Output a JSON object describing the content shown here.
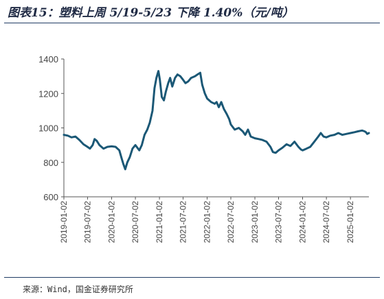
{
  "title": "图表15：塑料上周 5/19-5/23 下降 1.40%（元/吨）",
  "source": "来源：Wind，国金证券研究所",
  "colors": {
    "line": "#1b5876",
    "axis": "#555555",
    "text": "#444444",
    "title": "#1f2a44"
  },
  "chart_data": {
    "type": "line",
    "title": "",
    "xlabel": "",
    "ylabel": "",
    "ylim": [
      600,
      1400
    ],
    "yticks": [
      600,
      800,
      1000,
      1200,
      1400
    ],
    "xticks": [
      "2019-01-02",
      "2019-07-02",
      "2020-01-02",
      "2020-07-02",
      "2021-01-02",
      "2021-07-02",
      "2022-01-02",
      "2022-07-02",
      "2023-01-02",
      "2023-07-02",
      "2024-01-02",
      "2024-07-02",
      "2025-01-02"
    ],
    "xrange": [
      "2019-01-02",
      "2025-05-23"
    ],
    "grid": false,
    "legend": "none",
    "series": [
      {
        "points": [
          [
            "2019-01-02",
            960
          ],
          [
            "2019-02-01",
            955
          ],
          [
            "2019-03-01",
            945
          ],
          [
            "2019-04-01",
            950
          ],
          [
            "2019-05-01",
            930
          ],
          [
            "2019-06-01",
            905
          ],
          [
            "2019-07-01",
            890
          ],
          [
            "2019-07-20",
            880
          ],
          [
            "2019-08-10",
            900
          ],
          [
            "2019-08-25",
            935
          ],
          [
            "2019-09-10",
            925
          ],
          [
            "2019-10-01",
            900
          ],
          [
            "2019-11-01",
            880
          ],
          [
            "2019-12-01",
            890
          ],
          [
            "2020-01-02",
            893
          ],
          [
            "2020-02-01",
            890
          ],
          [
            "2020-03-01",
            870
          ],
          [
            "2020-03-20",
            820
          ],
          [
            "2020-04-01",
            790
          ],
          [
            "2020-04-15",
            760
          ],
          [
            "2020-05-01",
            800
          ],
          [
            "2020-05-20",
            830
          ],
          [
            "2020-06-10",
            880
          ],
          [
            "2020-07-02",
            900
          ],
          [
            "2020-08-01",
            870
          ],
          [
            "2020-08-20",
            900
          ],
          [
            "2020-09-10",
            960
          ],
          [
            "2020-10-01",
            990
          ],
          [
            "2020-10-20",
            1030
          ],
          [
            "2020-11-10",
            1100
          ],
          [
            "2020-11-25",
            1230
          ],
          [
            "2020-12-10",
            1290
          ],
          [
            "2020-12-25",
            1330
          ],
          [
            "2021-01-05",
            1280
          ],
          [
            "2021-01-20",
            1180
          ],
          [
            "2021-02-05",
            1160
          ],
          [
            "2021-02-20",
            1210
          ],
          [
            "2021-03-10",
            1260
          ],
          [
            "2021-03-25",
            1290
          ],
          [
            "2021-04-10",
            1240
          ],
          [
            "2021-05-01",
            1290
          ],
          [
            "2021-05-20",
            1310
          ],
          [
            "2021-06-10",
            1300
          ],
          [
            "2021-07-01",
            1280
          ],
          [
            "2021-07-20",
            1260
          ],
          [
            "2021-08-10",
            1270
          ],
          [
            "2021-09-01",
            1290
          ],
          [
            "2021-10-01",
            1300
          ],
          [
            "2021-10-20",
            1310
          ],
          [
            "2021-11-10",
            1320
          ],
          [
            "2021-11-25",
            1250
          ],
          [
            "2021-12-15",
            1200
          ],
          [
            "2022-01-02",
            1170
          ],
          [
            "2022-02-01",
            1150
          ],
          [
            "2022-03-01",
            1140
          ],
          [
            "2022-03-15",
            1150
          ],
          [
            "2022-04-01",
            1120
          ],
          [
            "2022-04-20",
            1150
          ],
          [
            "2022-05-10",
            1110
          ],
          [
            "2022-06-01",
            1080
          ],
          [
            "2022-06-20",
            1050
          ],
          [
            "2022-07-02",
            1020
          ],
          [
            "2022-08-01",
            990
          ],
          [
            "2022-09-01",
            1000
          ],
          [
            "2022-10-01",
            980
          ],
          [
            "2022-10-20",
            960
          ],
          [
            "2022-11-10",
            990
          ],
          [
            "2022-12-01",
            950
          ],
          [
            "2023-01-02",
            940
          ],
          [
            "2023-02-01",
            935
          ],
          [
            "2023-03-01",
            930
          ],
          [
            "2023-04-01",
            920
          ],
          [
            "2023-05-01",
            890
          ],
          [
            "2023-05-20",
            860
          ],
          [
            "2023-06-10",
            855
          ],
          [
            "2023-07-02",
            870
          ],
          [
            "2023-08-01",
            885
          ],
          [
            "2023-09-01",
            905
          ],
          [
            "2023-10-01",
            895
          ],
          [
            "2023-11-01",
            920
          ],
          [
            "2023-12-01",
            890
          ],
          [
            "2023-12-20",
            875
          ],
          [
            "2024-01-02",
            870
          ],
          [
            "2024-02-01",
            880
          ],
          [
            "2024-03-01",
            890
          ],
          [
            "2024-04-01",
            920
          ],
          [
            "2024-05-01",
            950
          ],
          [
            "2024-05-20",
            970
          ],
          [
            "2024-06-10",
            950
          ],
          [
            "2024-07-02",
            945
          ],
          [
            "2024-08-01",
            955
          ],
          [
            "2024-09-01",
            960
          ],
          [
            "2024-10-01",
            970
          ],
          [
            "2024-11-01",
            960
          ],
          [
            "2024-12-01",
            965
          ],
          [
            "2025-01-02",
            970
          ],
          [
            "2025-02-01",
            975
          ],
          [
            "2025-03-01",
            980
          ],
          [
            "2025-04-01",
            985
          ],
          [
            "2025-04-20",
            980
          ],
          [
            "2025-05-01",
            975
          ],
          [
            "2025-05-10",
            965
          ],
          [
            "2025-05-23",
            970
          ]
        ]
      }
    ]
  }
}
